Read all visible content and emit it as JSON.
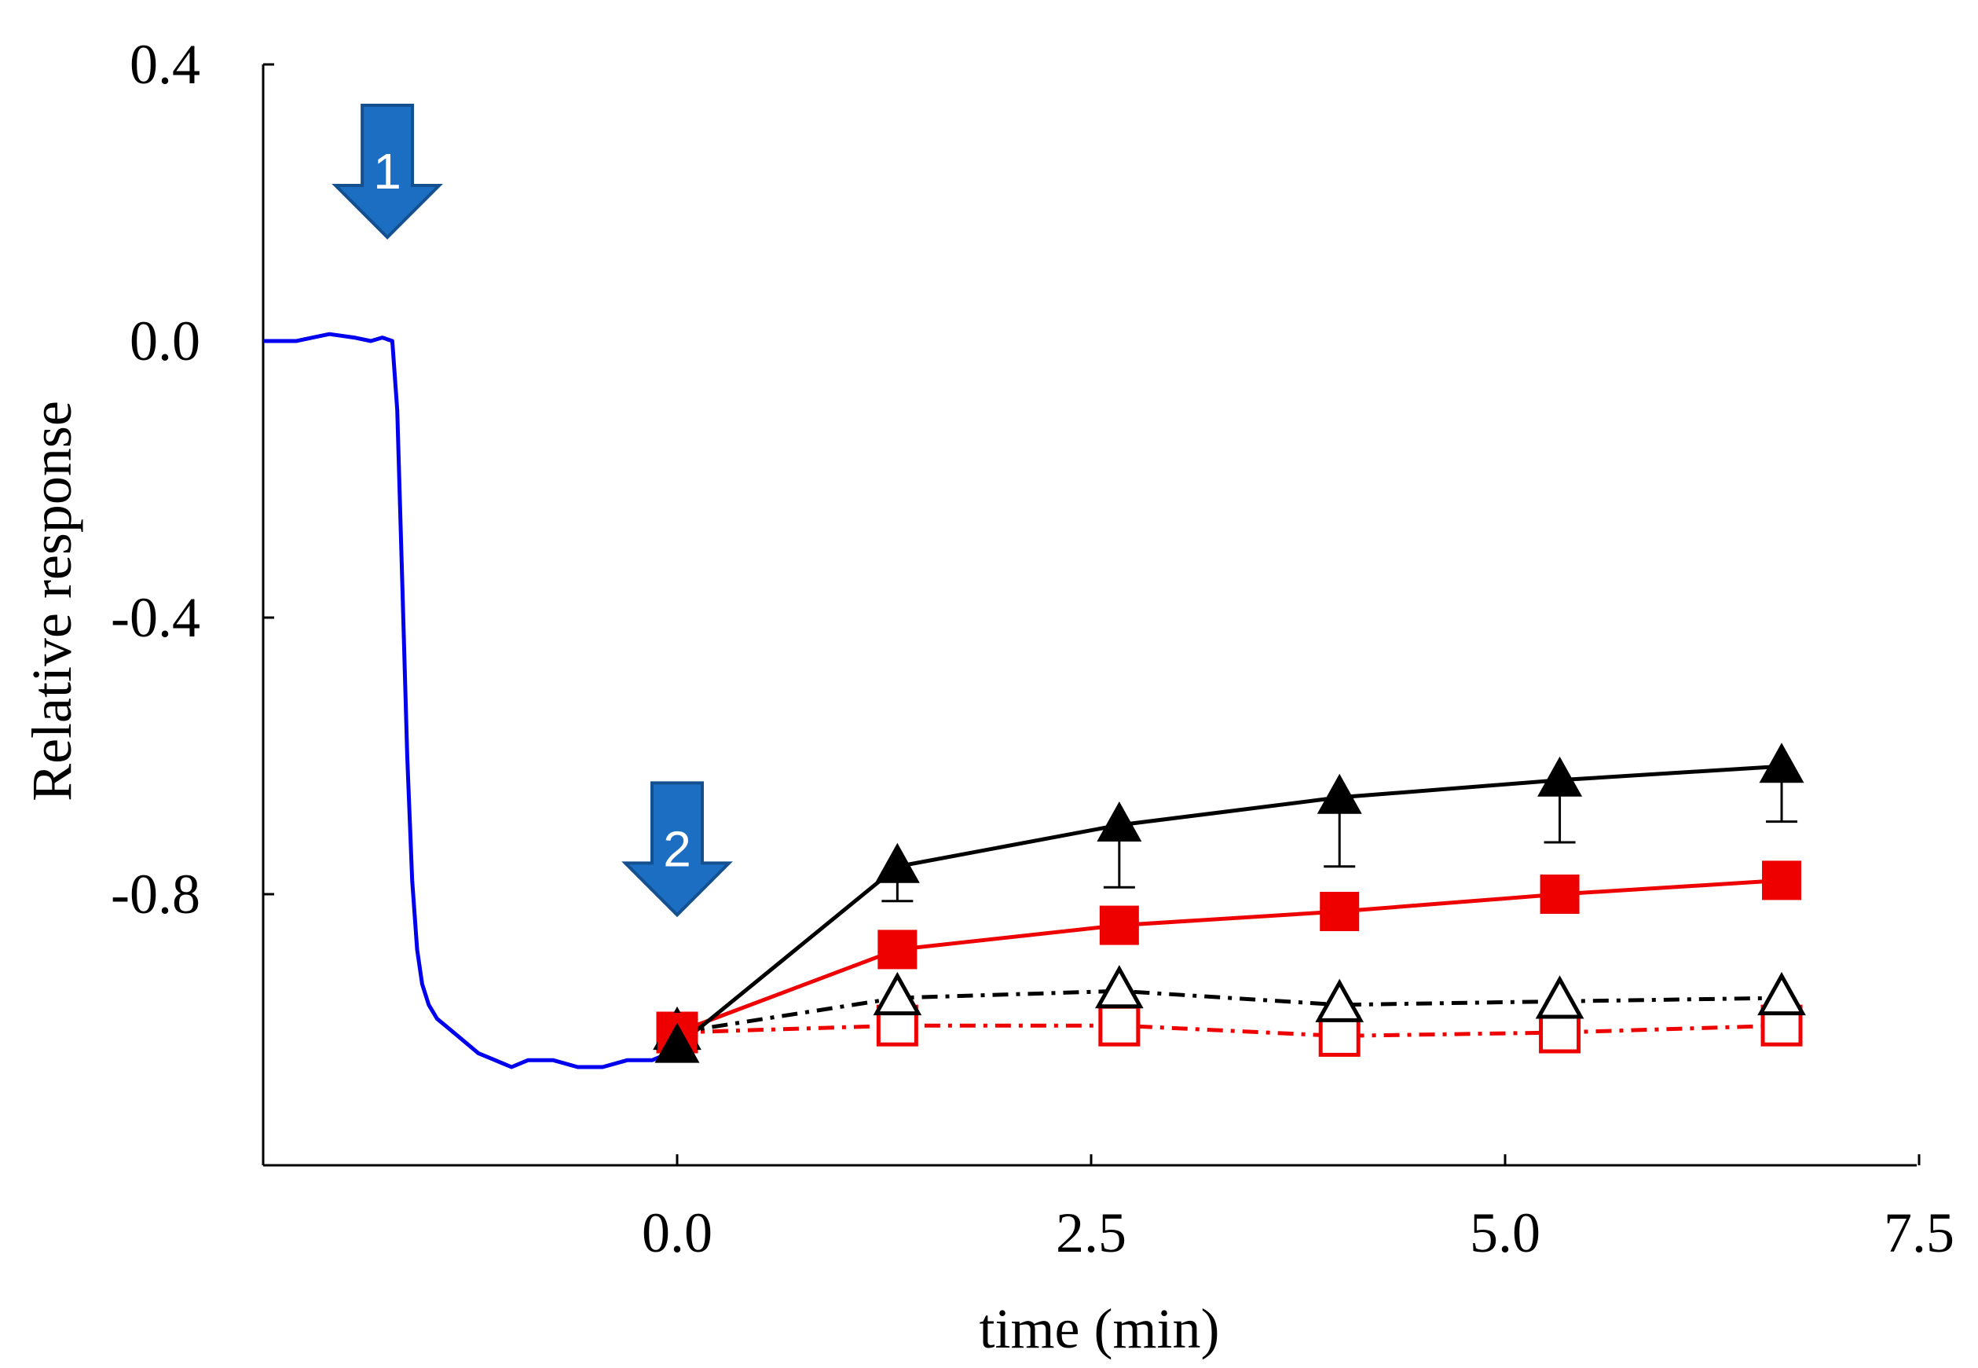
{
  "chart_data": {
    "type": "line",
    "title": "",
    "xlabel": "time (min)",
    "ylabel": "Relative response",
    "xlim": [
      -2.5,
      7.5
    ],
    "ylim": [
      -1.2,
      0.4
    ],
    "x_ticks": [
      0.0,
      2.5,
      5.0,
      7.5
    ],
    "x_tick_labels": [
      "0.0",
      "2.5",
      "5.0",
      "7.5"
    ],
    "y_ticks": [
      0.4,
      0.0,
      -0.4,
      -0.8
    ],
    "y_tick_labels": [
      "0.4",
      "0.0",
      "-0.4",
      "-0.8"
    ],
    "grid": false,
    "trace": {
      "name": "baseline trace",
      "color": "#0000ee",
      "x": [
        -2.5,
        -2.3,
        -2.2,
        -2.1,
        -1.95,
        -1.85,
        -1.78,
        -1.72,
        -1.69,
        -1.66,
        -1.63,
        -1.6,
        -1.57,
        -1.54,
        -1.5,
        -1.45,
        -1.4,
        -1.3,
        -1.2,
        -1.1,
        -1.0,
        -0.9,
        -0.75,
        -0.6,
        -0.45,
        -0.3,
        -0.15,
        -0.05,
        0.0
      ],
      "y": [
        0.0,
        0.0,
        0.005,
        0.01,
        0.005,
        0.0,
        0.005,
        0.0,
        -0.1,
        -0.35,
        -0.6,
        -0.78,
        -0.88,
        -0.93,
        -0.96,
        -0.98,
        -0.99,
        -1.01,
        -1.03,
        -1.04,
        -1.05,
        -1.04,
        -1.04,
        -1.05,
        -1.05,
        -1.04,
        -1.04,
        -1.03,
        -1.02
      ]
    },
    "series": [
      {
        "name": "filled triangles",
        "marker": "triangle-filled",
        "line": "solid",
        "color": "#000000",
        "x": [
          0.0,
          1.33,
          2.67,
          4.0,
          5.33,
          6.67
        ],
        "y": [
          -1.02,
          -0.76,
          -0.7,
          -0.66,
          -0.635,
          -0.615
        ],
        "error_lower": [
          0,
          0.05,
          0.09,
          0.1,
          0.09,
          0.08
        ]
      },
      {
        "name": "filled squares",
        "marker": "square-filled",
        "line": "solid",
        "color": "#ee0000",
        "x": [
          0.0,
          1.33,
          2.67,
          4.0,
          5.33,
          6.67
        ],
        "y": [
          -1.0,
          -0.88,
          -0.845,
          -0.825,
          -0.8,
          -0.78
        ]
      },
      {
        "name": "open triangles",
        "marker": "triangle-open",
        "line": "dashdot",
        "color": "#000000",
        "x": [
          0.0,
          1.33,
          2.67,
          4.0,
          5.33,
          6.67
        ],
        "y": [
          -1.0,
          -0.95,
          -0.94,
          -0.96,
          -0.955,
          -0.95
        ]
      },
      {
        "name": "open squares",
        "marker": "square-open",
        "line": "dashdot",
        "color": "#ee0000",
        "x": [
          0.0,
          1.33,
          2.67,
          4.0,
          5.33,
          6.67
        ],
        "y": [
          -1.0,
          -0.99,
          -0.99,
          -1.005,
          -1.0,
          -0.99
        ]
      }
    ],
    "annotations": [
      {
        "label": "1",
        "shape": "down-arrow",
        "x": -1.75,
        "y": 0.15,
        "color": "#1b6ec2"
      },
      {
        "label": "2",
        "shape": "down-arrow",
        "x": 0.0,
        "y": -0.83,
        "color": "#1b6ec2"
      }
    ]
  }
}
